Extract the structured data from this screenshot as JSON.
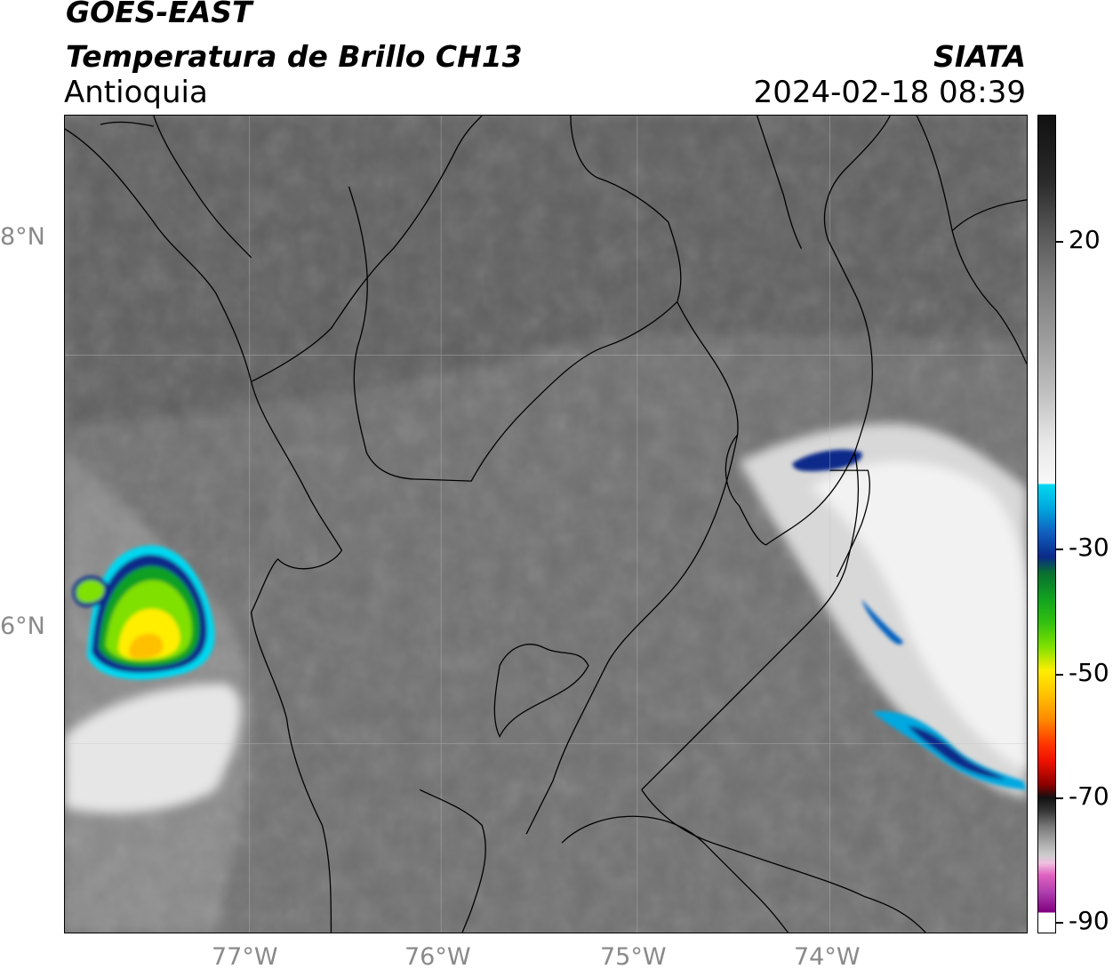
{
  "header": {
    "satellite": "GOES-EAST",
    "product": "Temperatura de Brillo CH13",
    "region": "Antioquia",
    "agency": "SIATA",
    "datetime": "2024-02-18 08:39"
  },
  "map": {
    "lat_labels": [
      "8°N",
      "6°N"
    ],
    "lon_labels": [
      "77°W",
      "76°W",
      "75°W",
      "74°W"
    ]
  },
  "colorbar": {
    "labels": [
      "20",
      "-30",
      "-50",
      "-70",
      "-90"
    ],
    "colors": {
      "warm_top": "#111111",
      "gray_mid": "#9a9a9a",
      "white": "#f5f5f5",
      "cyan": "#00d8f0",
      "blue": "#0a2a8a",
      "green": "#10a020",
      "lime": "#80e000",
      "yellow": "#ffee00",
      "orange": "#ff8800",
      "red": "#ee1100",
      "dark": "#111111",
      "light_gray": "#cccccc",
      "pink": "#e060c0",
      "purple": "#800080"
    }
  }
}
